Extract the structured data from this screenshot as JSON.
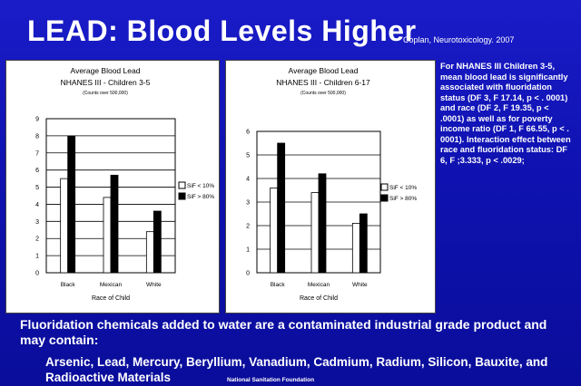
{
  "slide": {
    "title": "LEAD: Blood Levels Higher",
    "citation": "Coplan, Neurotoxicology. 2007",
    "side_note": "For NHANES III Children 3-5, mean blood lead is significantly associated with fluoridation status (DF 3, F 17.14, p < . 0001) and race (DF 2, F 19.35, p < .0001) as well as for poverty income ratio (DF 1, F 66.55, p < . 0001). Interaction effect between race and fluoridation status: DF 6, F ;3.333, p < .0029;",
    "bottom_main": "Fluoridation chemicals added to water are a contaminated industrial grade product and may contain:",
    "bottom_list": "Arsenic, Lead, Mercury, Beryllium, Vanadium, Cadmium, Radium, Silicon, Bauxite, and Radioactive Materials",
    "footnote": "National Sanitation Foundation"
  },
  "colors": {
    "background": "#1010b0",
    "bar_low": "#ffffff",
    "bar_high": "#000000"
  },
  "chart_data": [
    {
      "type": "bar",
      "title": "Average Blood Lead",
      "subtitle": "NHANES III - Children 3-5",
      "note": "(Counts over 500,000)",
      "xlabel": "Race of Child",
      "ylabel": "",
      "categories": [
        "Black",
        "Mexican",
        "White"
      ],
      "series": [
        {
          "name": "SiF < 10%",
          "values": [
            5.5,
            4.4,
            2.4
          ]
        },
        {
          "name": "SiF > 80%",
          "values": [
            8.0,
            5.7,
            3.6
          ]
        }
      ],
      "ylim": [
        0,
        9
      ],
      "yticks": [
        "0",
        "1",
        "2",
        "3",
        "4",
        "5",
        "6",
        "7",
        "8",
        "9"
      ],
      "grid": true,
      "legend": "right"
    },
    {
      "type": "bar",
      "title": "Average Blood Lead",
      "subtitle": "NHANES III - Children 6-17",
      "note": "(Counts over 500,000)",
      "xlabel": "Race of Child",
      "ylabel": "",
      "categories": [
        "Black",
        "Mexican",
        "White"
      ],
      "series": [
        {
          "name": "SiF < 10%",
          "values": [
            3.6,
            3.4,
            2.1
          ]
        },
        {
          "name": "SiF > 80%",
          "values": [
            5.5,
            4.2,
            2.5
          ]
        }
      ],
      "ylim": [
        0,
        6
      ],
      "yticks": [
        "0",
        "1",
        "2",
        "3",
        "4",
        "5",
        "6"
      ],
      "grid": true,
      "legend": "right"
    }
  ]
}
